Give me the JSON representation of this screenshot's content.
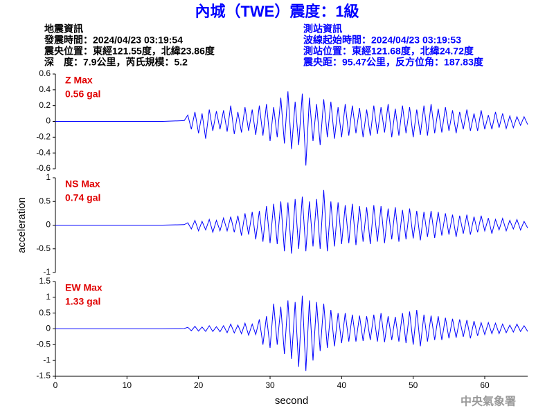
{
  "header": {
    "title": "內城（TWE）震度：1級",
    "left": [
      "地震資訊",
      "發震時間：2024/04/23 03:19:54",
      "震央位置：東經121.55度，北緯23.86度",
      "深　度：7.9公里，芮氏規模：5.2"
    ],
    "right": [
      "測站資訊",
      "波線起始時間：2024/04/23 03:19:53",
      "測站位置：東經121.68度，北緯24.72度",
      "震央距：95.47公里，反方位角：187.83度"
    ]
  },
  "footer": "中央氣象署",
  "chart_data": [
    {
      "type": "line",
      "annotations": [
        "Z Max",
        "0.56 gal"
      ],
      "xlim": [
        0,
        66
      ],
      "ylim": [
        -0.6,
        0.6
      ],
      "yticks": [
        0.6,
        0.4,
        0.2,
        0,
        -0.2,
        -0.4,
        -0.6
      ],
      "x": [
        0,
        5,
        10,
        15,
        18,
        18.5,
        19,
        19.5,
        20,
        20.5,
        21,
        21.5,
        22,
        22.5,
        23,
        23.5,
        24,
        24.5,
        25,
        25.5,
        26,
        26.5,
        27,
        27.5,
        28,
        28.5,
        29,
        29.5,
        30,
        30.5,
        31,
        31.5,
        32,
        32.5,
        33,
        33.5,
        34,
        34.5,
        35,
        35.5,
        36,
        36.5,
        37,
        37.5,
        38,
        38.5,
        39,
        39.5,
        40,
        40.5,
        41,
        41.5,
        42,
        42.5,
        43,
        43.5,
        44,
        44.5,
        45,
        45.5,
        46,
        46.5,
        47,
        47.5,
        48,
        48.5,
        49,
        49.5,
        50,
        50.5,
        51,
        51.5,
        52,
        52.5,
        53,
        53.5,
        54,
        54.5,
        55,
        55.5,
        56,
        56.5,
        57,
        57.5,
        58,
        58.5,
        59,
        59.5,
        60,
        60.5,
        61,
        61.5,
        62,
        62.5,
        63,
        63.5,
        64,
        64.5,
        65,
        65.5,
        66
      ],
      "series": [
        {
          "color": "#0000ff",
          "values": [
            0,
            0,
            0,
            0,
            0.01,
            0.08,
            -0.1,
            0.12,
            -0.15,
            0.1,
            -0.22,
            0.15,
            -0.12,
            0.13,
            -0.1,
            0.14,
            -0.13,
            0.2,
            -0.16,
            0.12,
            -0.14,
            0.18,
            -0.12,
            0.15,
            -0.17,
            0.2,
            -0.18,
            0.22,
            -0.25,
            0.18,
            -0.2,
            0.3,
            -0.28,
            0.38,
            -0.35,
            0.25,
            -0.3,
            0.35,
            -0.56,
            0.3,
            -0.25,
            0.22,
            -0.3,
            0.28,
            -0.2,
            0.25,
            -0.22,
            0.18,
            -0.2,
            0.22,
            -0.18,
            0.2,
            -0.15,
            0.17,
            -0.2,
            0.15,
            -0.18,
            0.2,
            -0.16,
            0.18,
            -0.14,
            0.22,
            -0.2,
            0.16,
            -0.18,
            0.2,
            -0.15,
            0.18,
            -0.2,
            0.15,
            -0.17,
            0.2,
            -0.18,
            0.22,
            -0.15,
            0.16,
            -0.14,
            0.18,
            -0.12,
            0.14,
            -0.15,
            0.12,
            -0.1,
            0.15,
            -0.12,
            0.1,
            -0.12,
            0.14,
            -0.1,
            0.08,
            -0.1,
            0.12,
            -0.08,
            0.1,
            -0.09,
            0.07,
            -0.08,
            0.06,
            -0.05,
            0.06,
            -0.04
          ]
        }
      ]
    },
    {
      "type": "line",
      "annotations": [
        "NS Max",
        "0.74 gal"
      ],
      "ylabel": "acceleration",
      "xlim": [
        0,
        66
      ],
      "ylim": [
        -1,
        1
      ],
      "yticks": [
        1,
        0.5,
        0,
        -0.5,
        -1
      ],
      "x": [
        0,
        5,
        10,
        15,
        18,
        18.5,
        19,
        19.5,
        20,
        20.5,
        21,
        21.5,
        22,
        22.5,
        23,
        23.5,
        24,
        24.5,
        25,
        25.5,
        26,
        26.5,
        27,
        27.5,
        28,
        28.5,
        29,
        29.5,
        30,
        30.5,
        31,
        31.5,
        32,
        32.5,
        33,
        33.5,
        34,
        34.5,
        35,
        35.5,
        36,
        36.5,
        37,
        37.5,
        38,
        38.5,
        39,
        39.5,
        40,
        40.5,
        41,
        41.5,
        42,
        42.5,
        43,
        43.5,
        44,
        44.5,
        45,
        45.5,
        46,
        46.5,
        47,
        47.5,
        48,
        48.5,
        49,
        49.5,
        50,
        50.5,
        51,
        51.5,
        52,
        52.5,
        53,
        53.5,
        54,
        54.5,
        55,
        55.5,
        56,
        56.5,
        57,
        57.5,
        58,
        58.5,
        59,
        59.5,
        60,
        60.5,
        61,
        61.5,
        62,
        62.5,
        63,
        63.5,
        64,
        64.5,
        65,
        65.5,
        66
      ],
      "series": [
        {
          "color": "#0000ff",
          "values": [
            0,
            0,
            0,
            0,
            0.01,
            0.05,
            -0.08,
            0.1,
            -0.12,
            0.08,
            -0.1,
            0.12,
            -0.15,
            0.1,
            -0.12,
            0.15,
            -0.12,
            0.18,
            -0.15,
            0.2,
            -0.22,
            0.25,
            -0.2,
            0.28,
            -0.3,
            0.3,
            -0.35,
            0.4,
            -0.38,
            0.45,
            -0.4,
            0.5,
            -0.55,
            0.48,
            -0.6,
            0.55,
            -0.5,
            0.6,
            -0.55,
            0.5,
            -0.45,
            0.55,
            -0.5,
            0.74,
            -0.55,
            0.5,
            -0.45,
            0.48,
            -0.4,
            0.42,
            -0.38,
            0.45,
            -0.42,
            0.4,
            -0.35,
            0.38,
            -0.4,
            0.42,
            -0.35,
            0.4,
            -0.38,
            0.35,
            -0.3,
            0.38,
            -0.35,
            0.32,
            -0.3,
            0.35,
            -0.28,
            0.3,
            -0.32,
            0.28,
            -0.25,
            0.3,
            -0.27,
            0.28,
            -0.22,
            0.25,
            -0.2,
            0.22,
            -0.25,
            0.2,
            -0.18,
            0.22,
            -0.2,
            0.18,
            -0.15,
            0.2,
            -0.12,
            0.15,
            -0.18,
            0.12,
            -0.1,
            0.14,
            -0.12,
            0.1,
            -0.08,
            0.12,
            -0.1,
            0.08,
            -0.06
          ]
        }
      ]
    },
    {
      "type": "line",
      "annotations": [
        "EW Max",
        "1.33 gal"
      ],
      "xlabel": "second",
      "xlim": [
        0,
        66
      ],
      "xticks": [
        0,
        10,
        20,
        30,
        40,
        50,
        60
      ],
      "ylim": [
        -1.5,
        1.5
      ],
      "yticks": [
        1.5,
        1,
        0.5,
        0,
        -0.5,
        -1,
        -1.5
      ],
      "x": [
        0,
        5,
        10,
        15,
        18,
        18.5,
        19,
        19.5,
        20,
        20.5,
        21,
        21.5,
        22,
        22.5,
        23,
        23.5,
        24,
        24.5,
        25,
        25.5,
        26,
        26.5,
        27,
        27.5,
        28,
        28.5,
        29,
        29.5,
        30,
        30.5,
        31,
        31.5,
        32,
        32.5,
        33,
        33.5,
        34,
        34.5,
        35,
        35.5,
        36,
        36.5,
        37,
        37.5,
        38,
        38.5,
        39,
        39.5,
        40,
        40.5,
        41,
        41.5,
        42,
        42.5,
        43,
        43.5,
        44,
        44.5,
        45,
        45.5,
        46,
        46.5,
        47,
        47.5,
        48,
        48.5,
        49,
        49.5,
        50,
        50.5,
        51,
        51.5,
        52,
        52.5,
        53,
        53.5,
        54,
        54.5,
        55,
        55.5,
        56,
        56.5,
        57,
        57.5,
        58,
        58.5,
        59,
        59.5,
        60,
        60.5,
        61,
        61.5,
        62,
        62.5,
        63,
        63.5,
        64,
        64.5,
        65,
        65.5,
        66
      ],
      "series": [
        {
          "color": "#0000ff",
          "values": [
            0,
            0,
            0,
            0,
            0.01,
            0.05,
            -0.06,
            0.08,
            -0.07,
            0.06,
            -0.08,
            0.1,
            -0.08,
            0.07,
            -0.09,
            0.1,
            -0.12,
            0.15,
            -0.13,
            0.12,
            -0.15,
            0.18,
            -0.2,
            0.15,
            -0.18,
            0.3,
            -0.5,
            0.4,
            -0.6,
            0.8,
            -0.5,
            0.7,
            -0.8,
            0.9,
            -0.95,
            0.85,
            -1.2,
            1.05,
            -1.33,
            0.9,
            -1.0,
            0.85,
            -0.7,
            0.8,
            -0.6,
            0.6,
            -0.55,
            0.5,
            -0.45,
            0.5,
            -0.4,
            0.45,
            -0.4,
            0.42,
            -0.38,
            0.4,
            -0.35,
            0.45,
            -0.4,
            0.5,
            -0.42,
            0.4,
            -0.35,
            0.38,
            -0.4,
            0.5,
            -0.45,
            0.55,
            -0.5,
            0.6,
            -0.55,
            0.45,
            -0.4,
            0.42,
            -0.35,
            0.4,
            -0.35,
            0.35,
            -0.3,
            0.32,
            -0.28,
            0.3,
            -0.25,
            0.28,
            -0.3,
            0.25,
            -0.22,
            0.2,
            -0.18,
            0.2,
            -0.15,
            0.18,
            -0.15,
            0.15,
            -0.12,
            0.12,
            -0.1,
            0.15,
            -0.08,
            0.1,
            -0.08
          ]
        }
      ]
    }
  ]
}
